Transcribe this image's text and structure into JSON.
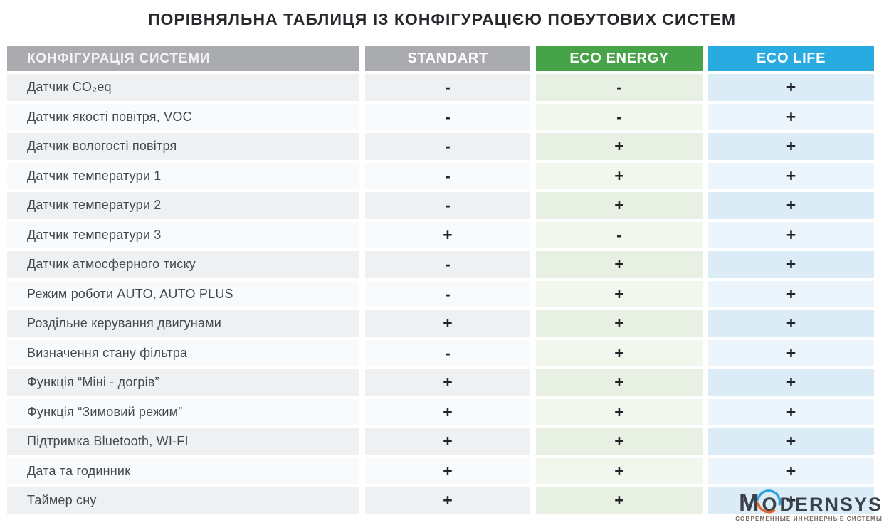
{
  "title": "ПОРІВНЯЛЬНА ТАБЛИЦЯ ІЗ КОНФІГУРАЦІЄЮ ПОБУТОВИХ СИСТЕМ",
  "chart_data": {
    "type": "table",
    "title": "ПОРІВНЯЛЬНА ТАБЛИЦЯ ІЗ КОНФІГУРАЦІЄЮ ПОБУТОВИХ СИСТЕМ",
    "feature_header": "КОНФІГУРАЦІЯ СИСТЕМИ",
    "feature_header_color": "#a9abae",
    "columns": [
      "STANDART",
      "ECO ENERGY",
      "ECO LIFE"
    ],
    "column_colors": [
      "#a9abae",
      "#46a347",
      "#29abe2"
    ],
    "rows": [
      {
        "feature": "Датчик CO₂eq",
        "values": [
          "-",
          "-",
          "+"
        ]
      },
      {
        "feature": "Датчик якості повітря, VOC",
        "values": [
          "-",
          "-",
          "+"
        ]
      },
      {
        "feature": "Датчик вологості повітря",
        "values": [
          "-",
          "+",
          "+"
        ]
      },
      {
        "feature": "Датчик температури 1",
        "values": [
          "-",
          "+",
          "+"
        ]
      },
      {
        "feature": "Датчик температури 2",
        "values": [
          "-",
          "+",
          "+"
        ]
      },
      {
        "feature": "Датчик температури 3",
        "values": [
          "+",
          "-",
          "+"
        ]
      },
      {
        "feature": "Датчик атмосферного тиску",
        "values": [
          "-",
          "+",
          "+"
        ]
      },
      {
        "feature": "Режим роботи AUTO, AUTO PLUS",
        "values": [
          "-",
          "+",
          "+"
        ]
      },
      {
        "feature": "Роздільне керування двигунами",
        "values": [
          "+",
          "+",
          "+"
        ]
      },
      {
        "feature": "Визначення стану фільтра",
        "values": [
          "-",
          "+",
          "+"
        ]
      },
      {
        "feature": "Функція “Міні - догрів”",
        "values": [
          "+",
          "+",
          "+"
        ]
      },
      {
        "feature": "Функція “Зимовий режим”",
        "values": [
          "+",
          "+",
          "+"
        ]
      },
      {
        "feature": "Підтримка Bluetooth, WI-FI",
        "values": [
          "+",
          "+",
          "+"
        ]
      },
      {
        "feature": "Дата та годинник",
        "values": [
          "+",
          "+",
          "+"
        ]
      },
      {
        "feature": "Таймер сну",
        "values": [
          "+",
          "+",
          "+"
        ]
      }
    ]
  },
  "logo": {
    "brand_prefix": "M",
    "brand_o": "O",
    "brand_rest": "DERNSYS",
    "tagline": "СОВРЕМЕННЫЕ ИНЖЕНЕРНЫЕ СИСТЕМЫ",
    "arc_top_color": "#2ba3dc",
    "arc_bottom_color": "#e8622d",
    "text_color": "#3b414b",
    "tagline_color": "#7a6a62"
  }
}
